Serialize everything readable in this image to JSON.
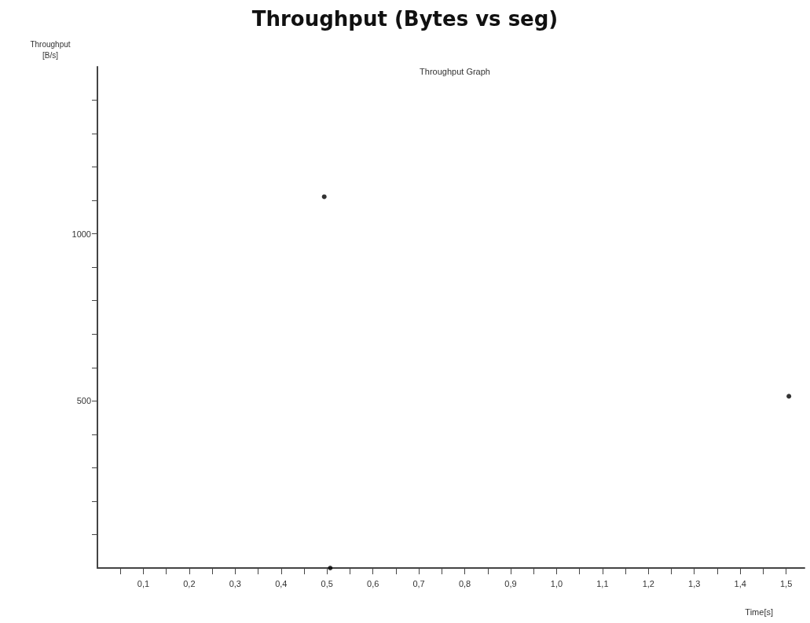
{
  "chart_data": {
    "type": "scatter",
    "title": "Throughput (Bytes vs seg)",
    "subtitle": "Throughput Graph",
    "xlabel": "Time[s]",
    "ylabel": "Throughput\n[B/s]",
    "x": [
      0.494,
      0.507,
      1.506
    ],
    "values": [
      1111,
      0,
      514
    ],
    "color": "#000000",
    "marker": "circle",
    "grid": false,
    "xlim": [
      0,
      1.54
    ],
    "xticks": [
      {
        "value": 0.05,
        "label": null
      },
      {
        "value": 0.1,
        "label": "0,1"
      },
      {
        "value": 0.15,
        "label": null
      },
      {
        "value": 0.2,
        "label": "0,2"
      },
      {
        "value": 0.25,
        "label": null
      },
      {
        "value": 0.3,
        "label": "0,3"
      },
      {
        "value": 0.35,
        "label": null
      },
      {
        "value": 0.4,
        "label": "0,4"
      },
      {
        "value": 0.45,
        "label": null
      },
      {
        "value": 0.5,
        "label": "0,5"
      },
      {
        "value": 0.55,
        "label": null
      },
      {
        "value": 0.6,
        "label": "0,6"
      },
      {
        "value": 0.65,
        "label": null
      },
      {
        "value": 0.7,
        "label": "0,7"
      },
      {
        "value": 0.75,
        "label": null
      },
      {
        "value": 0.8,
        "label": "0,8"
      },
      {
        "value": 0.85,
        "label": null
      },
      {
        "value": 0.9,
        "label": "0,9"
      },
      {
        "value": 0.95,
        "label": null
      },
      {
        "value": 1.0,
        "label": "1,0"
      },
      {
        "value": 1.05,
        "label": null
      },
      {
        "value": 1.1,
        "label": "1,1"
      },
      {
        "value": 1.15,
        "label": null
      },
      {
        "value": 1.2,
        "label": "1,2"
      },
      {
        "value": 1.25,
        "label": null
      },
      {
        "value": 1.3,
        "label": "1,3"
      },
      {
        "value": 1.35,
        "label": null
      },
      {
        "value": 1.4,
        "label": "1,4"
      },
      {
        "value": 1.45,
        "label": null
      },
      {
        "value": 1.5,
        "label": "1,5"
      }
    ],
    "ylim": [
      0,
      1500
    ],
    "yticks": [
      {
        "value": 100,
        "label": null
      },
      {
        "value": 200,
        "label": null
      },
      {
        "value": 300,
        "label": null
      },
      {
        "value": 400,
        "label": null
      },
      500,
      {
        "value": 600,
        "label": null
      },
      {
        "value": 700,
        "label": null
      },
      {
        "value": 800,
        "label": null
      },
      {
        "value": 900,
        "label": null
      },
      1000,
      {
        "value": 1100,
        "label": null
      },
      {
        "value": 1200,
        "label": null
      },
      {
        "value": 1300,
        "label": null
      },
      {
        "value": 1400,
        "label": null
      }
    ]
  }
}
